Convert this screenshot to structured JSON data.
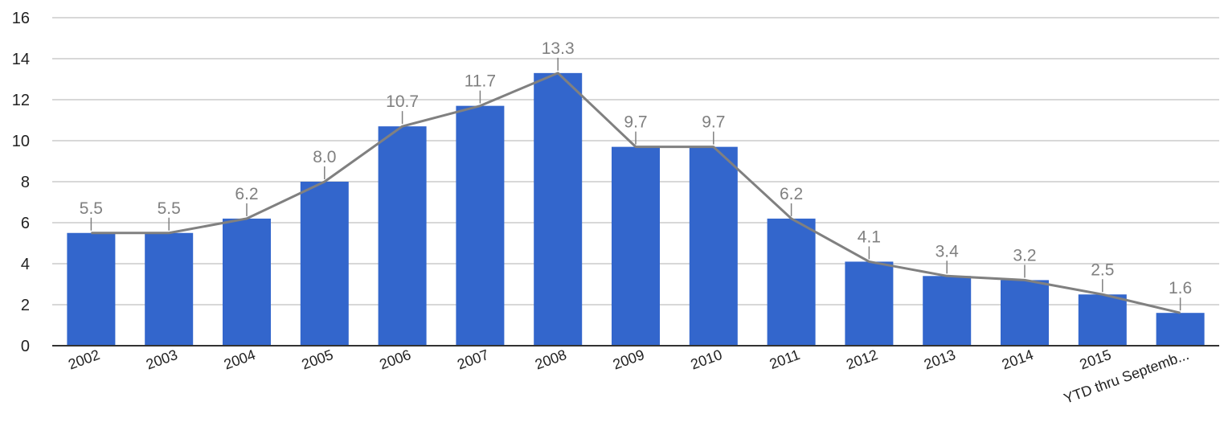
{
  "chart_data": {
    "type": "bar",
    "categories": [
      "2002",
      "2003",
      "2004",
      "2005",
      "2006",
      "2007",
      "2008",
      "2009",
      "2010",
      "2011",
      "2012",
      "2013",
      "2014",
      "2015",
      "YTD thru Septemb..."
    ],
    "series": [
      {
        "type": "bar",
        "values": [
          5.5,
          5.5,
          6.2,
          8.0,
          10.7,
          11.7,
          13.3,
          9.7,
          9.7,
          6.2,
          4.1,
          3.4,
          3.2,
          2.5,
          1.6
        ]
      },
      {
        "type": "line",
        "values": [
          5.5,
          5.5,
          6.2,
          8.0,
          10.7,
          11.7,
          13.3,
          9.7,
          9.7,
          6.2,
          4.1,
          3.4,
          3.2,
          2.5,
          1.6
        ]
      }
    ],
    "data_labels": [
      "5.5",
      "5.5",
      "6.2",
      "8.0",
      "10.7",
      "11.7",
      "13.3",
      "9.7",
      "9.7",
      "6.2",
      "4.1",
      "3.4",
      "3.2",
      "2.5",
      "1.6"
    ],
    "y_ticks": [
      "0",
      "2",
      "4",
      "6",
      "8",
      "10",
      "12",
      "14",
      "16"
    ],
    "ylim": [
      0,
      16
    ],
    "title": "",
    "xlabel": "",
    "ylabel": "",
    "grid": true,
    "legend": "none",
    "colors": {
      "bar": "#3366cc",
      "line": "#808080",
      "label": "#808080",
      "grid": "#cccccc",
      "axis": "#333333"
    }
  }
}
